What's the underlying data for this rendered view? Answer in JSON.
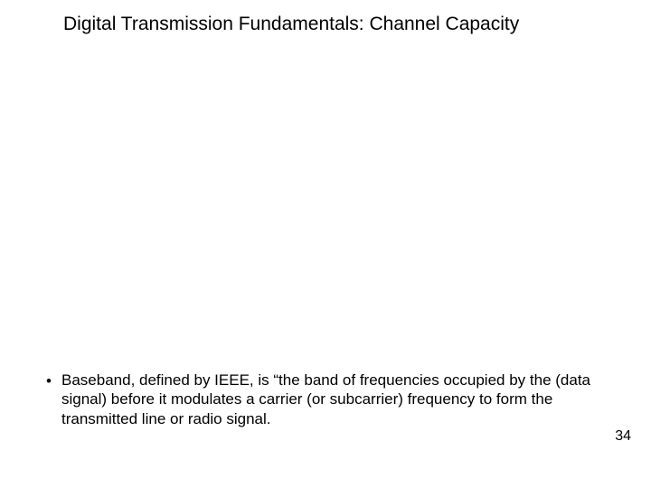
{
  "slide": {
    "title": "Digital Transmission Fundamentals: Channel Capacity",
    "title_fontsize": 21,
    "title_color": "#000000",
    "background_color": "#ffffff",
    "bullets": [
      {
        "marker": "•",
        "text": "Baseband, defined by IEEE, is “the band of frequencies occupied by the (data signal) before it modulates a carrier (or subcarrier) frequency to form the transmitted line or radio signal."
      }
    ],
    "body_fontsize": 17,
    "body_color": "#000000",
    "page_number": "34",
    "page_number_fontsize": 16
  }
}
